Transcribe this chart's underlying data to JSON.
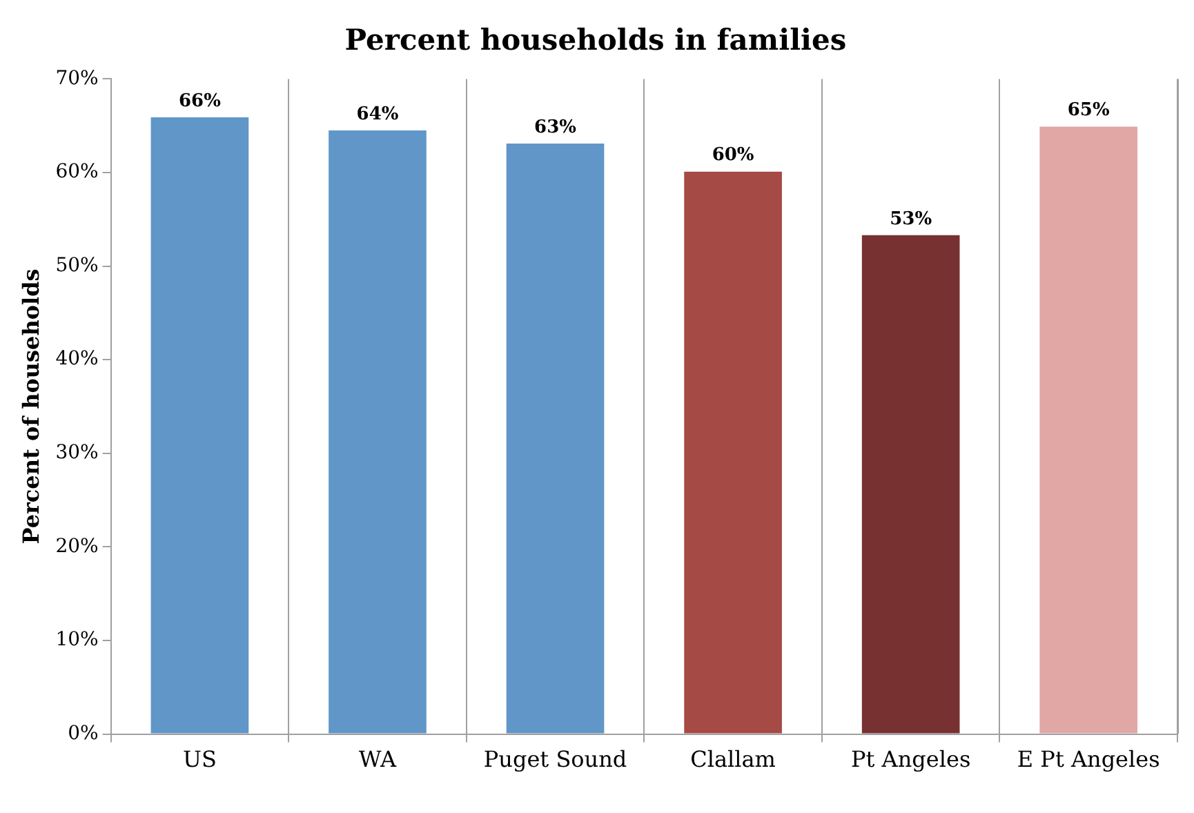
{
  "chart_data": {
    "type": "bar",
    "title": "Percent households in families",
    "ylabel": "Percent of households",
    "categories": [
      "US",
      "WA",
      "Puget Sound",
      "Clallam",
      "Pt Angeles",
      "E Pt Angeles"
    ],
    "values": [
      65.9,
      64.5,
      63.1,
      60.1,
      53.3,
      64.9
    ],
    "value_labels": [
      "66%",
      "64%",
      "63%",
      "60%",
      "53%",
      "65%"
    ],
    "colors": [
      "#6096c8",
      "#6096c8",
      "#6096c8",
      "#a54a44",
      "#773130",
      "#e0a7a5"
    ],
    "ylim": [
      0,
      70
    ],
    "yticks": [
      {
        "value": 0,
        "label": "0%"
      },
      {
        "value": 10,
        "label": "10%"
      },
      {
        "value": 20,
        "label": "20%"
      },
      {
        "value": 30,
        "label": "30%"
      },
      {
        "value": 40,
        "label": "40%"
      },
      {
        "value": 50,
        "label": "50%"
      },
      {
        "value": 60,
        "label": "60%"
      },
      {
        "value": 70,
        "label": "70%"
      }
    ],
    "grid": "x",
    "legend": false
  }
}
